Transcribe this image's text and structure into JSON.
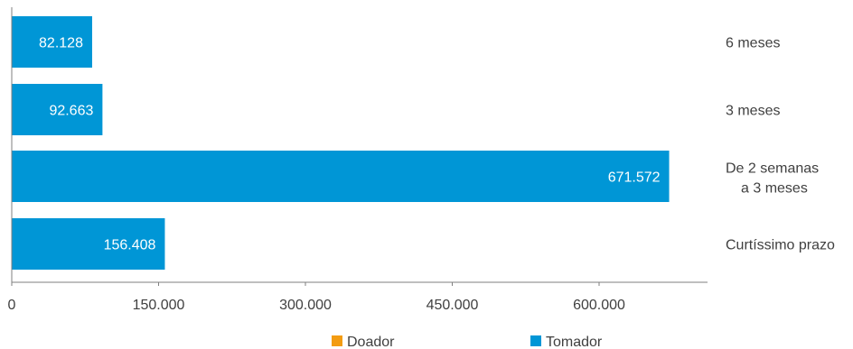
{
  "chart_data": {
    "type": "bar",
    "orientation": "horizontal",
    "title": "",
    "categories": [
      "6 meses",
      "3 meses",
      "De 2 semanas a 3 meses",
      "Curtíssimo prazo"
    ],
    "category_lines": [
      [
        "6 meses"
      ],
      [
        "3 meses"
      ],
      [
        "De 2 semanas",
        "a 3 meses"
      ],
      [
        "Curtíssimo prazo"
      ]
    ],
    "series": [
      {
        "name": "Doador",
        "color": "#F39C12",
        "values": [
          0,
          0,
          0,
          0
        ]
      },
      {
        "name": "Tomador",
        "color": "#0096D6",
        "values": [
          82128,
          92663,
          671572,
          156408
        ]
      }
    ],
    "data_labels": [
      "82.128",
      "92.663",
      "671.572",
      "156.408"
    ],
    "x_ticks": [
      0,
      150000,
      300000,
      450000,
      600000
    ],
    "x_tick_labels": [
      "0",
      "150.000",
      "300.000",
      "450.000",
      "600.000"
    ],
    "xlim": [
      0,
      700000
    ],
    "legend": {
      "position": "bottom",
      "items": [
        "Doador",
        "Tomador"
      ]
    },
    "grid": false
  }
}
